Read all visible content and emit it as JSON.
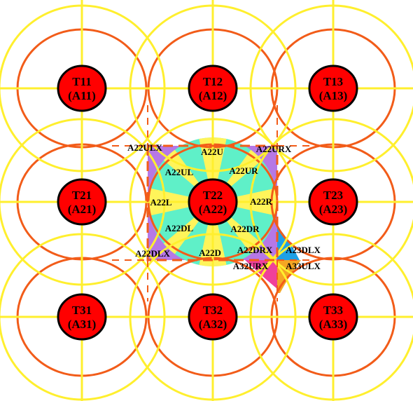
{
  "colors": {
    "coverage_ring": "#f25c19",
    "sector_arc": "#ffef2e",
    "node_fill": "#ff0000",
    "node_stroke": "#000000",
    "region_border": "#f25c19",
    "inner_sector_fill": "#5ff0c8",
    "axis_sector_fill": "#fff45a",
    "corner_fill": "#b678e6",
    "drx_fill": "#f0409a",
    "dlx_fill": "#1ea0e6",
    "ulx_fill": "#f5a623"
  },
  "nodes": [
    {
      "id": "T11",
      "area": "(A11)"
    },
    {
      "id": "T12",
      "area": "(A12)"
    },
    {
      "id": "T13",
      "area": "(A13)"
    },
    {
      "id": "T21",
      "area": "(A21)"
    },
    {
      "id": "T22",
      "area": "(A22)"
    },
    {
      "id": "T23",
      "area": "(A23)"
    },
    {
      "id": "T31",
      "area": "(A31)"
    },
    {
      "id": "T32",
      "area": "(A32)"
    },
    {
      "id": "T33",
      "area": "(A33)"
    }
  ],
  "regions": {
    "up": "A22U",
    "up_left": "A22UL",
    "up_right": "A22UR",
    "left": "A22L",
    "right": "A22R",
    "down_left": "A22DL",
    "down_right": "A22DR",
    "down": "A22D",
    "up_left_x": "A22ULX",
    "up_right_x": "A22URX",
    "down_left_x": "A22DLX",
    "down_right_x": "A22DRX",
    "a23_down_left_x": "A23DLX",
    "a32_up_right_x": "A32URX",
    "a33_up_left_x": "A33ULX"
  }
}
